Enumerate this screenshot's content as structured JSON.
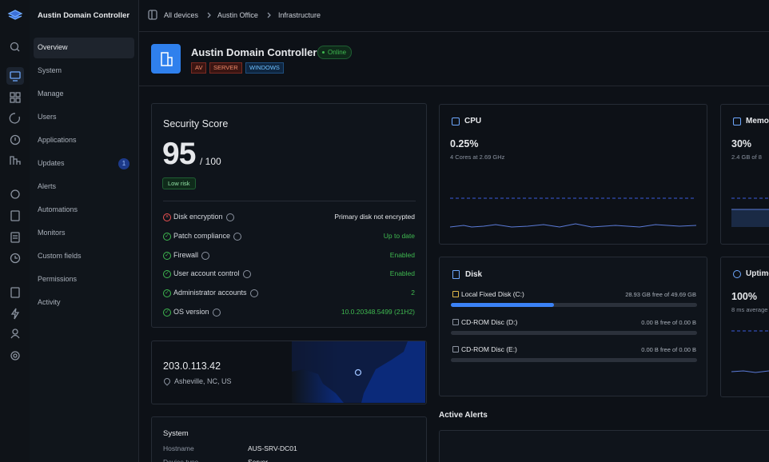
{
  "sidebar": {
    "app_title": "Austin Domain Controller",
    "nav": [
      {
        "label": "Overview",
        "active": true
      },
      {
        "label": "System"
      },
      {
        "label": "Manage"
      },
      {
        "label": "Users"
      },
      {
        "label": "Applications"
      },
      {
        "label": "Updates",
        "badge": 1
      },
      {
        "label": "Alerts"
      },
      {
        "label": "Automations"
      },
      {
        "label": "Monitors"
      },
      {
        "label": "Custom fields"
      },
      {
        "label": "Permissions"
      },
      {
        "label": "Activity"
      }
    ]
  },
  "breadcrumb": [
    "All devices",
    "Austin Office",
    "Infrastructure"
  ],
  "device": {
    "name": "Austin Domain Controller",
    "status": "Online",
    "tags": [
      {
        "label": "AV",
        "color": "red"
      },
      {
        "label": "SERVER",
        "color": "red"
      },
      {
        "label": "WINDOWS",
        "color": "blue"
      }
    ]
  },
  "security": {
    "title": "Security Score",
    "score": 95,
    "max": 100,
    "max_label": "/ 100",
    "risk": "Low risk",
    "checks": [
      {
        "label": "Disk encryption",
        "value": "Primary disk not encrypted",
        "status": "fail"
      },
      {
        "label": "Patch compliance",
        "value": "Up to date",
        "status": "ok"
      },
      {
        "label": "Firewall",
        "value": "Enabled",
        "status": "ok"
      },
      {
        "label": "User account control",
        "value": "Enabled",
        "status": "ok"
      },
      {
        "label": "Administrator accounts",
        "value": "2",
        "status": "ok"
      },
      {
        "label": "OS version",
        "value": "10.0.20348.5499 (21H2)",
        "status": "ok"
      }
    ]
  },
  "location": {
    "ip": "203.0.113.42",
    "place": "Asheville, NC, US"
  },
  "system": {
    "title": "System",
    "rows": [
      [
        "Hostname",
        "AUS-SRV-DC01"
      ],
      [
        "Device type",
        "Server"
      ]
    ]
  },
  "metrics": [
    {
      "title": "CPU",
      "value": "0.25%",
      "detail": "4 Cores at 2.69 GHz"
    },
    {
      "title": "Memory",
      "value": "30%",
      "detail": "2.4 GB of 8"
    },
    {
      "title": "Uptime",
      "value": "100%",
      "detail": "8 ms average"
    }
  ],
  "disk": {
    "title": "Disk",
    "drives": [
      {
        "name": "Local Fixed Disk (C:)",
        "label": "28.93 GB free of 49.69 GB",
        "free": 28.93,
        "total": 49.69
      },
      {
        "name": "CD-ROM Disc (D:)",
        "label": "0.00 B free of 0.00 B",
        "free": 0,
        "total": 0
      },
      {
        "name": "CD-ROM Disc (E:)",
        "label": "0.00 B free of 0.00 B",
        "free": 0,
        "total": 0
      }
    ]
  },
  "alerts": {
    "title": "Active Alerts"
  }
}
